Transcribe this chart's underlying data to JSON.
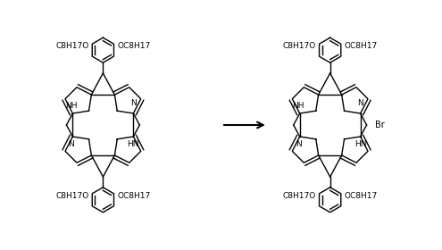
{
  "background_color": "#ffffff",
  "lw": 1.0,
  "font_size": 6.5,
  "br_label": "Br",
  "nh_label": "NH",
  "n_label": "N",
  "hn_label": "HN",
  "c8h17o_label": "C8H17O",
  "oc8h17_label": "OC8H17"
}
